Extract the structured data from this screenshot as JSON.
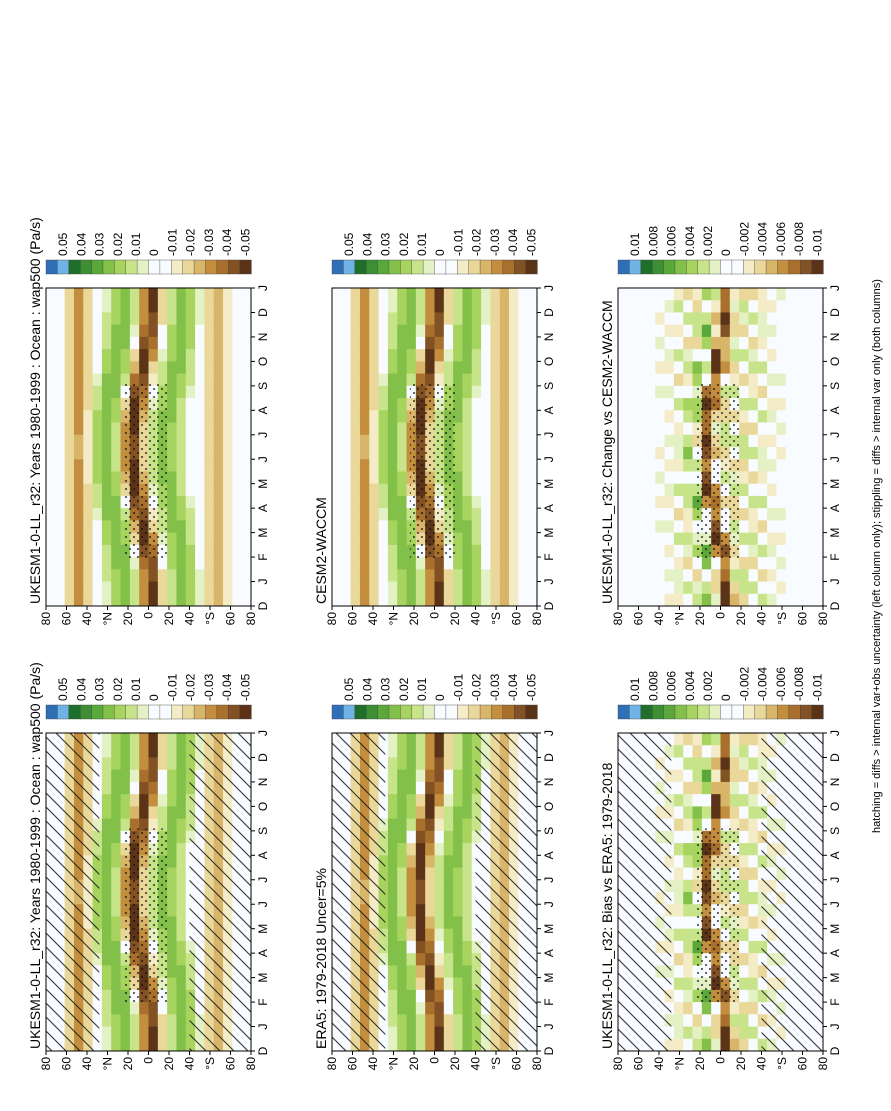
{
  "footer": "hatching = diffs > internal var+obs uncertainty (left column only); stippling = diffs > internal var only (both columns)",
  "palette": {
    "blues": [
      "#2f6fb8",
      "#6fb3e6"
    ],
    "greens": [
      "#1f6f2a",
      "#3c8f34",
      "#5aa83a",
      "#82c04a",
      "#a6d45f",
      "#c8e48a",
      "#e4f1c4"
    ],
    "white": "#f8fbff",
    "tans": [
      "#f4ecc6",
      "#ead79a",
      "#d9b56a",
      "#c38f3f",
      "#a8702c",
      "#825224",
      "#5a3318"
    ]
  },
  "chart_data": [
    {
      "type": "heatmap",
      "title": "UKESM1-0-LL_r32: Years 1980-1999 : Ocean : wap500 (Pa/s)",
      "x": [
        "D",
        "J",
        "F",
        "M",
        "A",
        "M",
        "J",
        "J",
        "A",
        "S",
        "O",
        "N",
        "D",
        "J"
      ],
      "y": [
        "80",
        "60",
        "40",
        "°N",
        "20",
        "0",
        "20",
        "40",
        "°S",
        "60",
        "80"
      ],
      "colorbar": [
        "0.05",
        "0.04",
        "0.03",
        "0.02",
        "0.01",
        "0",
        "-0.01",
        "-0.02",
        "-0.03",
        "-0.04",
        "-0.05"
      ],
      "hatching": true,
      "stippling": true
    },
    {
      "type": "heatmap",
      "title": "UKESM1-0-LL_r32: Years 1980-1999 : Ocean : wap500 (Pa/s)",
      "x": [
        "D",
        "J",
        "F",
        "M",
        "A",
        "M",
        "J",
        "J",
        "A",
        "S",
        "O",
        "N",
        "D",
        "J"
      ],
      "y": [
        "80",
        "60",
        "40",
        "°N",
        "20",
        "0",
        "20",
        "40",
        "°S",
        "60",
        "80"
      ],
      "colorbar": [
        "0.05",
        "0.04",
        "0.03",
        "0.02",
        "0.01",
        "0",
        "-0.01",
        "-0.02",
        "-0.03",
        "-0.04",
        "-0.05"
      ],
      "hatching": false,
      "stippling": true
    },
    {
      "type": "heatmap",
      "title": "ERA5: 1979-2018 Uncer=5%",
      "x": [
        "D",
        "J",
        "F",
        "M",
        "A",
        "M",
        "J",
        "J",
        "A",
        "S",
        "O",
        "N",
        "D",
        "J"
      ],
      "y": [
        "80",
        "60",
        "40",
        "°N",
        "20",
        "0",
        "20",
        "40",
        "°S",
        "60",
        "80"
      ],
      "colorbar": [
        "0.05",
        "0.04",
        "0.03",
        "0.02",
        "0.01",
        "0",
        "-0.01",
        "-0.02",
        "-0.03",
        "-0.04",
        "-0.05"
      ],
      "hatching": true,
      "stippling": false
    },
    {
      "type": "heatmap",
      "title": "CESM2-WACCM",
      "x": [
        "D",
        "J",
        "F",
        "M",
        "A",
        "M",
        "J",
        "J",
        "A",
        "S",
        "O",
        "N",
        "D",
        "J"
      ],
      "y": [
        "80",
        "60",
        "40",
        "°N",
        "20",
        "0",
        "20",
        "40",
        "°S",
        "60",
        "80"
      ],
      "colorbar": [
        "0.05",
        "0.04",
        "0.03",
        "0.02",
        "0.01",
        "0",
        "-0.01",
        "-0.02",
        "-0.03",
        "-0.04",
        "-0.05"
      ],
      "hatching": false,
      "stippling": true
    },
    {
      "type": "heatmap",
      "title": "UKESM1-0-LL_r32: Bias vs ERA5: 1979-2018",
      "x": [
        "D",
        "J",
        "F",
        "M",
        "A",
        "M",
        "J",
        "J",
        "A",
        "S",
        "O",
        "N",
        "D",
        "J"
      ],
      "y": [
        "80",
        "60",
        "40",
        "°N",
        "20",
        "0",
        "20",
        "40",
        "°S",
        "60",
        "80"
      ],
      "colorbar": [
        "0.01",
        "0.008",
        "0.006",
        "0.004",
        "0.002",
        "0",
        "-0.002",
        "-0.004",
        "-0.006",
        "-0.008",
        "-0.01"
      ],
      "hatching": true,
      "stippling": true
    },
    {
      "type": "heatmap",
      "title": "UKESM1-0-LL_r32: Change vs CESM2-WACCM",
      "x": [
        "D",
        "J",
        "F",
        "M",
        "A",
        "M",
        "J",
        "J",
        "A",
        "S",
        "O",
        "N",
        "D",
        "J"
      ],
      "y": [
        "80",
        "60",
        "40",
        "°N",
        "20",
        "0",
        "20",
        "40",
        "°S",
        "60",
        "80"
      ],
      "colorbar": [
        "0.01",
        "0.008",
        "0.006",
        "0.004",
        "0.002",
        "0",
        "-0.002",
        "-0.004",
        "-0.006",
        "-0.008",
        "-0.01"
      ],
      "hatching": false,
      "stippling": true
    }
  ]
}
